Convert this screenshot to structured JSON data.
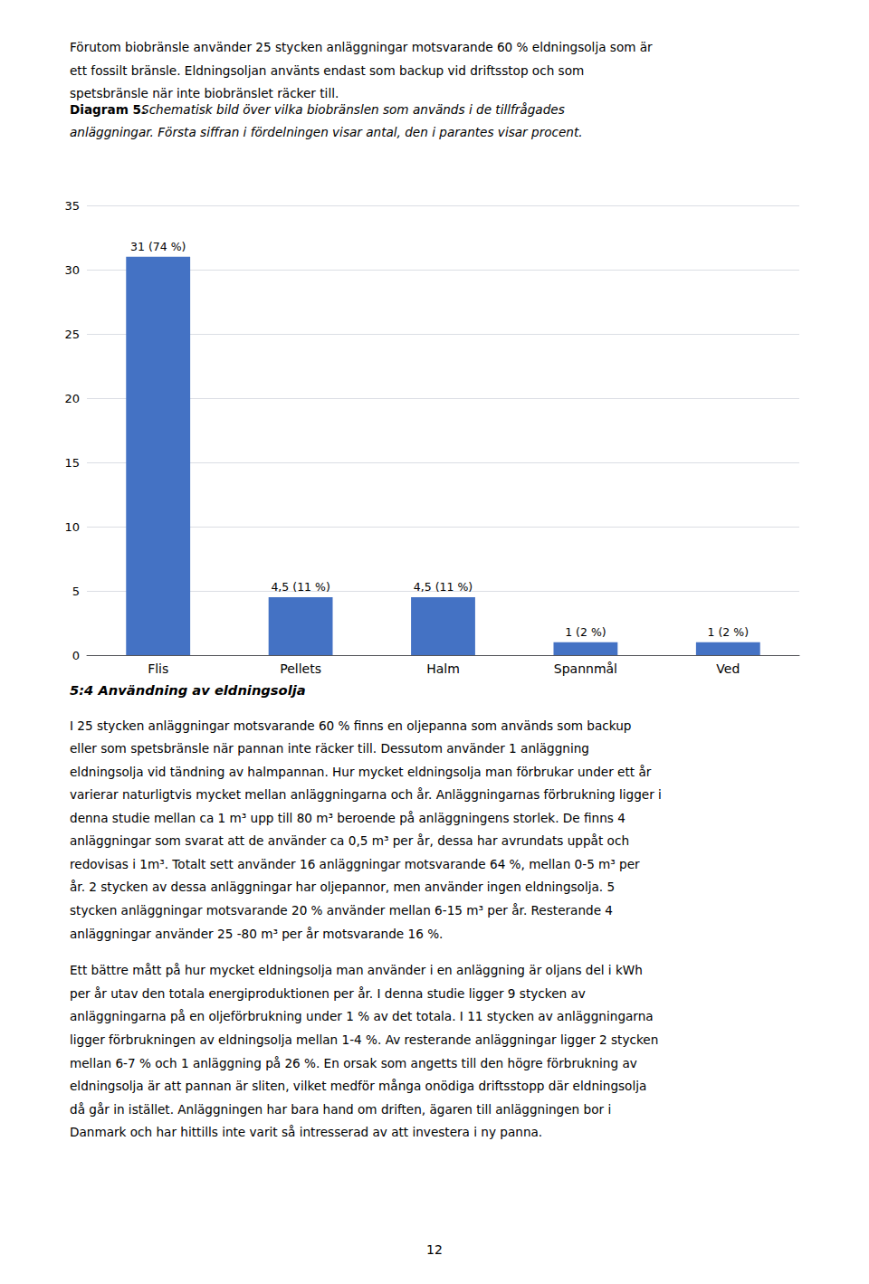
{
  "chart_data": {
    "type": "bar",
    "categories": [
      "Flis",
      "Pellets",
      "Halm",
      "Spannmål",
      "Ved"
    ],
    "values": [
      31,
      4.5,
      4.5,
      1,
      1
    ],
    "value_labels": [
      "31 (74 %)",
      "4,5 (11 %)",
      "4,5 (11 %)",
      "1 (2 %)",
      "1 (2 %)"
    ],
    "color": "#4472C4",
    "ylim": [
      0,
      35
    ],
    "yticks": [
      0,
      5,
      10,
      15,
      20,
      25,
      30,
      35
    ],
    "grid": true,
    "data_labels": true,
    "annotations": [
      "Förutom biobränsle använder 25 stycken anläggningar motsvarande 60 % eldningsolja som är",
      "ett fossilt bränsle. Eldningsoljan använts endast som backup vid driftsstop och som",
      "spetsbränsle när inte biobränslet räcker till.",
      "Diagram 5.",
      "Schematisk bild över vilka biobränslen som används i de tillfrågades",
      "anläggningar. Första siffran i fördelningen visar antal, den i parantes visar procent.",
      "5:4 Användning av eldningsolja",
      "I 25 stycken anläggningar motsvarande 60 % finns en oljepanna som används som backup",
      "eller som spetsbränsle när pannan inte räcker till. Dessutom använder 1 anläggning",
      "eldningsolja vid tändning av halmpannan. Hur mycket eldningsolja man förbrukar under ett år",
      "varierar naturligtvis mycket mellan anläggningarna och år. Anläggningarnas förbrukning ligger i",
      "denna studie mellan ca 1 m³ upp till 80 m³ beroende på anläggningens storlek. De finns 4",
      "anläggningar som svarat att de använder ca 0,5 m³ per år, dessa har avrundats uppåt och",
      "redovisas i 1m³. Totalt sett använder 16 anläggningar motsvarande 64 %, mellan 0-5 m³ per",
      "år. 2 stycken av dessa anläggningar har oljepannor, men använder ingen eldningsolja. 5",
      "stycken anläggningar motsvarande 20 % använder mellan 6-15 m³ per år. Resterande 4",
      "anläggningar använder 25 -80 m³ per år motsvarande 16 %.",
      "Ett bättre mått på hur mycket eldningsolja man använder i en anläggning är oljans del i kWh",
      "per år utav den totala energiproduktionen per år. I denna studie ligger 9 stycken av",
      "anläggningarna på en oljeförbrukning under 1 % av det totala. I 11 stycken av anläggningarna",
      "ligger förbrukningen av eldningsolja mellan 1-4 %. Av resterande anläggningar ligger 2 stycken",
      "mellan 6-7 % och 1 anläggning på 26 %. En orsak som angetts till den högre förbrukning av",
      "eldningsolja är att pannan är sliten, vilket medför många onödiga driftsstopp där eldningsolja",
      "då går in istället. Anläggningen har bara hand om driften, ägaren till anläggningen bor i",
      "Danmark och har hittills inte varit så intresserad av att investera i ny panna.",
      "12"
    ]
  }
}
